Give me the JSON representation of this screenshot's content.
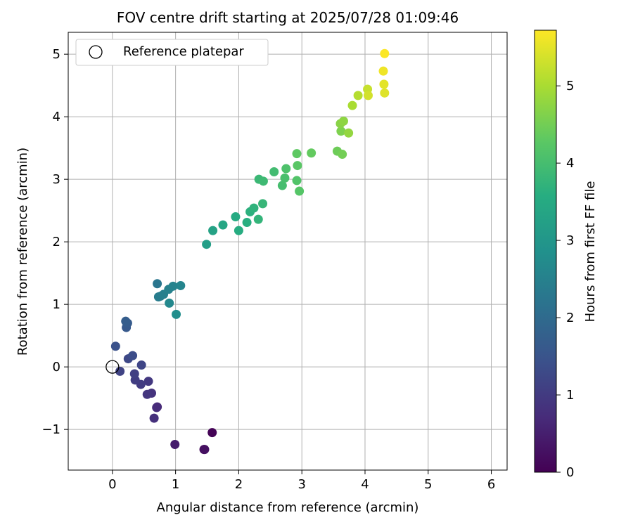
{
  "chart_data": {
    "type": "scatter",
    "title": "FOV centre drift starting at 2025/07/28 01:09:46",
    "xlabel": "Angular distance from reference (arcmin)",
    "ylabel": "Rotation from reference (arcmin)",
    "xlim": [
      -0.7,
      6.25
    ],
    "ylim": [
      -1.65,
      5.35
    ],
    "xticks": [
      0,
      1,
      2,
      3,
      4,
      5,
      6
    ],
    "yticks": [
      -1,
      0,
      1,
      2,
      3,
      4,
      5
    ],
    "xtick_labels": [
      "0",
      "1",
      "2",
      "3",
      "4",
      "5",
      "6"
    ],
    "ytick_labels": [
      "−1",
      "0",
      "1",
      "2",
      "3",
      "4",
      "5"
    ],
    "grid": true,
    "legend": {
      "placement": "top-left",
      "entries": [
        {
          "label": "Reference platepar",
          "marker": "open-circle",
          "x": 0,
          "y": 0
        }
      ]
    },
    "colorbar": {
      "label": "Hours from first FF file",
      "colormap": "viridis",
      "range": [
        0,
        5.72
      ],
      "ticks": [
        0,
        1,
        2,
        3,
        4,
        5
      ],
      "tick_labels": [
        "0",
        "1",
        "2",
        "3",
        "4",
        "5"
      ]
    },
    "series": [
      {
        "points": [
          [
            1.58,
            -1.05,
            0.03
          ],
          [
            1.45,
            -1.32,
            0.15
          ],
          [
            1.46,
            -1.32,
            0.25
          ],
          [
            0.99,
            -1.24,
            0.45
          ],
          [
            0.71,
            -0.64,
            0.65
          ],
          [
            0.7,
            -0.65,
            0.72
          ],
          [
            0.66,
            -0.82,
            0.8
          ],
          [
            0.62,
            -0.42,
            0.85
          ],
          [
            0.55,
            -0.44,
            0.9
          ],
          [
            0.57,
            -0.23,
            0.95
          ],
          [
            0.45,
            -0.28,
            1.0
          ],
          [
            0.36,
            -0.21,
            1.05
          ],
          [
            0.35,
            -0.11,
            1.1
          ],
          [
            0.12,
            -0.07,
            1.15
          ],
          [
            0.46,
            0.03,
            1.2
          ],
          [
            0.25,
            0.13,
            1.25
          ],
          [
            0.32,
            0.18,
            1.35
          ],
          [
            0.05,
            0.33,
            1.45
          ],
          [
            0.22,
            0.63,
            1.6
          ],
          [
            0.24,
            0.7,
            1.65
          ],
          [
            0.21,
            0.73,
            1.7
          ],
          [
            0.71,
            1.33,
            2.25
          ],
          [
            0.76,
            1.13,
            2.35
          ],
          [
            0.73,
            1.12,
            2.4
          ],
          [
            0.81,
            1.16,
            2.45
          ],
          [
            0.89,
            1.24,
            2.5
          ],
          [
            0.96,
            1.29,
            2.55
          ],
          [
            1.08,
            1.3,
            2.6
          ],
          [
            0.9,
            1.02,
            2.65
          ],
          [
            1.01,
            0.84,
            2.8
          ],
          [
            1.49,
            1.96,
            3.2
          ],
          [
            1.59,
            2.18,
            3.3
          ],
          [
            1.75,
            2.27,
            3.4
          ],
          [
            1.95,
            2.4,
            3.5
          ],
          [
            2.0,
            2.18,
            3.55
          ],
          [
            2.13,
            2.31,
            3.6
          ],
          [
            2.18,
            2.48,
            3.65
          ],
          [
            2.24,
            2.54,
            3.7
          ],
          [
            2.31,
            2.36,
            3.75
          ],
          [
            2.38,
            2.61,
            3.8
          ],
          [
            2.32,
            3.0,
            3.85
          ],
          [
            2.39,
            2.97,
            3.9
          ],
          [
            2.56,
            3.12,
            3.95
          ],
          [
            2.69,
            2.9,
            4.0
          ],
          [
            2.73,
            3.02,
            4.05
          ],
          [
            2.75,
            3.17,
            4.1
          ],
          [
            2.92,
            2.98,
            4.15
          ],
          [
            2.96,
            2.81,
            4.2
          ],
          [
            2.93,
            3.22,
            4.25
          ],
          [
            2.92,
            3.41,
            4.3
          ],
          [
            3.15,
            3.42,
            4.35
          ],
          [
            3.56,
            3.45,
            4.45
          ],
          [
            3.64,
            3.4,
            4.5
          ],
          [
            3.62,
            3.77,
            4.6
          ],
          [
            3.61,
            3.89,
            4.7
          ],
          [
            3.66,
            3.93,
            4.75
          ],
          [
            3.74,
            3.74,
            4.8
          ],
          [
            3.8,
            4.18,
            5.0
          ],
          [
            3.89,
            4.34,
            5.1
          ],
          [
            4.04,
            4.44,
            5.25
          ],
          [
            4.05,
            4.34,
            5.35
          ],
          [
            4.31,
            4.38,
            5.45
          ],
          [
            4.3,
            4.52,
            5.5
          ],
          [
            4.29,
            4.73,
            5.6
          ],
          [
            4.31,
            5.01,
            5.7
          ]
        ],
        "point_fields": [
          "x",
          "y",
          "hours"
        ]
      }
    ]
  }
}
